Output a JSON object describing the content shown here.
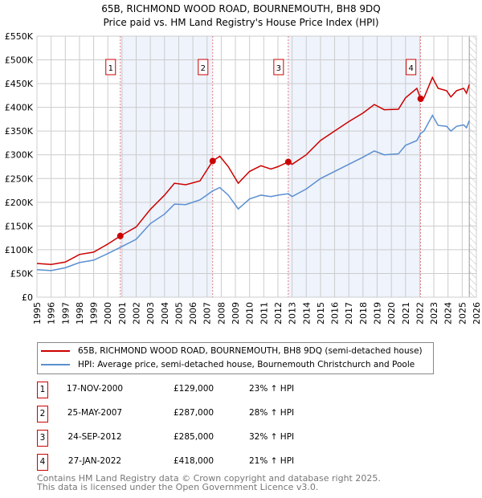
{
  "chart_data": {
    "type": "line",
    "title": "65B, RICHMOND WOOD ROAD, BOURNEMOUTH, BH8 9DQ",
    "subtitle": "Price paid vs. HM Land Registry's House Price Index (HPI)",
    "xlim": [
      1995,
      2026
    ],
    "ylim": [
      0,
      550000
    ],
    "x_ticks": [
      "1995",
      "1996",
      "1997",
      "1998",
      "1999",
      "2000",
      "2001",
      "2002",
      "2003",
      "2004",
      "2005",
      "2006",
      "2007",
      "2008",
      "2009",
      "2010",
      "2011",
      "2012",
      "2013",
      "2014",
      "2015",
      "2016",
      "2017",
      "2018",
      "2019",
      "2020",
      "2021",
      "2022",
      "2023",
      "2024",
      "2025",
      "2026"
    ],
    "y_ticks": [
      {
        "v": 0,
        "label": "£0"
      },
      {
        "v": 50000,
        "label": "£50K"
      },
      {
        "v": 100000,
        "label": "£100K"
      },
      {
        "v": 150000,
        "label": "£150K"
      },
      {
        "v": 200000,
        "label": "£200K"
      },
      {
        "v": 250000,
        "label": "£250K"
      },
      {
        "v": 300000,
        "label": "£300K"
      },
      {
        "v": 350000,
        "label": "£350K"
      },
      {
        "v": 400000,
        "label": "£400K"
      },
      {
        "v": 450000,
        "label": "£450K"
      },
      {
        "v": 500000,
        "label": "£500K"
      },
      {
        "v": 550000,
        "label": "£550K"
      }
    ],
    "grid": true,
    "series": [
      {
        "name": "65B, RICHMOND WOOD ROAD, BOURNEMOUTH, BH8 9DQ (semi-detached house)",
        "color": "#cc0000",
        "x": [
          1995,
          1996,
          1997,
          1998,
          1999,
          2000,
          2000.88,
          2002,
          2003,
          2004,
          2004.7,
          2005.5,
          2006.5,
          2007.4,
          2007.9,
          2008.5,
          2009.2,
          2010,
          2010.8,
          2011.5,
          2012,
          2012.73,
          2013,
          2014,
          2015,
          2016,
          2017,
          2018,
          2018.8,
          2019.5,
          2020.5,
          2021,
          2021.8,
          2022.07,
          2022.3,
          2022.9,
          2023.3,
          2023.9,
          2024.2,
          2024.6,
          2025.1,
          2025.3,
          2025.5
        ],
        "y": [
          71000,
          69000,
          74000,
          90000,
          95000,
          112000,
          129000,
          148000,
          185000,
          215000,
          240000,
          237000,
          245000,
          287000,
          297000,
          275000,
          240000,
          265000,
          277000,
          270000,
          275000,
          285000,
          280000,
          300000,
          330000,
          350000,
          370000,
          388000,
          406000,
          395000,
          396000,
          420000,
          440000,
          418000,
          420000,
          463000,
          440000,
          435000,
          422000,
          435000,
          440000,
          430000,
          448000
        ]
      },
      {
        "name": "HPI: Average price, semi-detached house, Bournemouth Christchurch and Poole",
        "color": "#5b8fd0",
        "x": [
          1995,
          1996,
          1997,
          1998,
          1999,
          2000,
          2000.88,
          2002,
          2003,
          2004,
          2004.7,
          2005.5,
          2006.5,
          2007.4,
          2007.9,
          2008.5,
          2009.2,
          2010,
          2010.8,
          2011.5,
          2012,
          2012.73,
          2013,
          2014,
          2015,
          2016,
          2017,
          2018,
          2018.8,
          2019.5,
          2020.5,
          2021,
          2021.8,
          2022.07,
          2022.3,
          2022.9,
          2023.3,
          2023.9,
          2024.2,
          2024.6,
          2025.1,
          2025.3,
          2025.5
        ],
        "y": [
          58000,
          56000,
          62000,
          73000,
          78000,
          92000,
          105000,
          122000,
          155000,
          175000,
          196000,
          195000,
          205000,
          224000,
          231000,
          215000,
          186000,
          207000,
          215000,
          212000,
          215000,
          218000,
          212000,
          228000,
          250000,
          265000,
          280000,
          295000,
          308000,
          300000,
          302000,
          320000,
          330000,
          345000,
          350000,
          383000,
          362000,
          360000,
          350000,
          360000,
          363000,
          357000,
          372000
        ]
      }
    ],
    "sales": [
      {
        "n": "1",
        "x": 2000.88,
        "date": "17-NOV-2000",
        "price_value": 129000,
        "price": "£129,000",
        "hpi": "23% ↑ HPI"
      },
      {
        "n": "2",
        "x": 2007.4,
        "date": "25-MAY-2007",
        "price_value": 287000,
        "price": "£287,000",
        "hpi": "28% ↑ HPI"
      },
      {
        "n": "3",
        "x": 2012.73,
        "date": "24-SEP-2012",
        "price_value": 285000,
        "price": "£285,000",
        "hpi": "32% ↑ HPI"
      },
      {
        "n": "4",
        "x": 2022.07,
        "date": "27-JAN-2022",
        "price_value": 418000,
        "price": "£418,000",
        "hpi": "21% ↑ HPI"
      }
    ],
    "forecast_start": 2025.5,
    "legend_position": "below"
  },
  "footer": {
    "line1": "Contains HM Land Registry data © Crown copyright and database right 2025.",
    "line2": "This data is licensed under the Open Government Licence v3.0."
  }
}
